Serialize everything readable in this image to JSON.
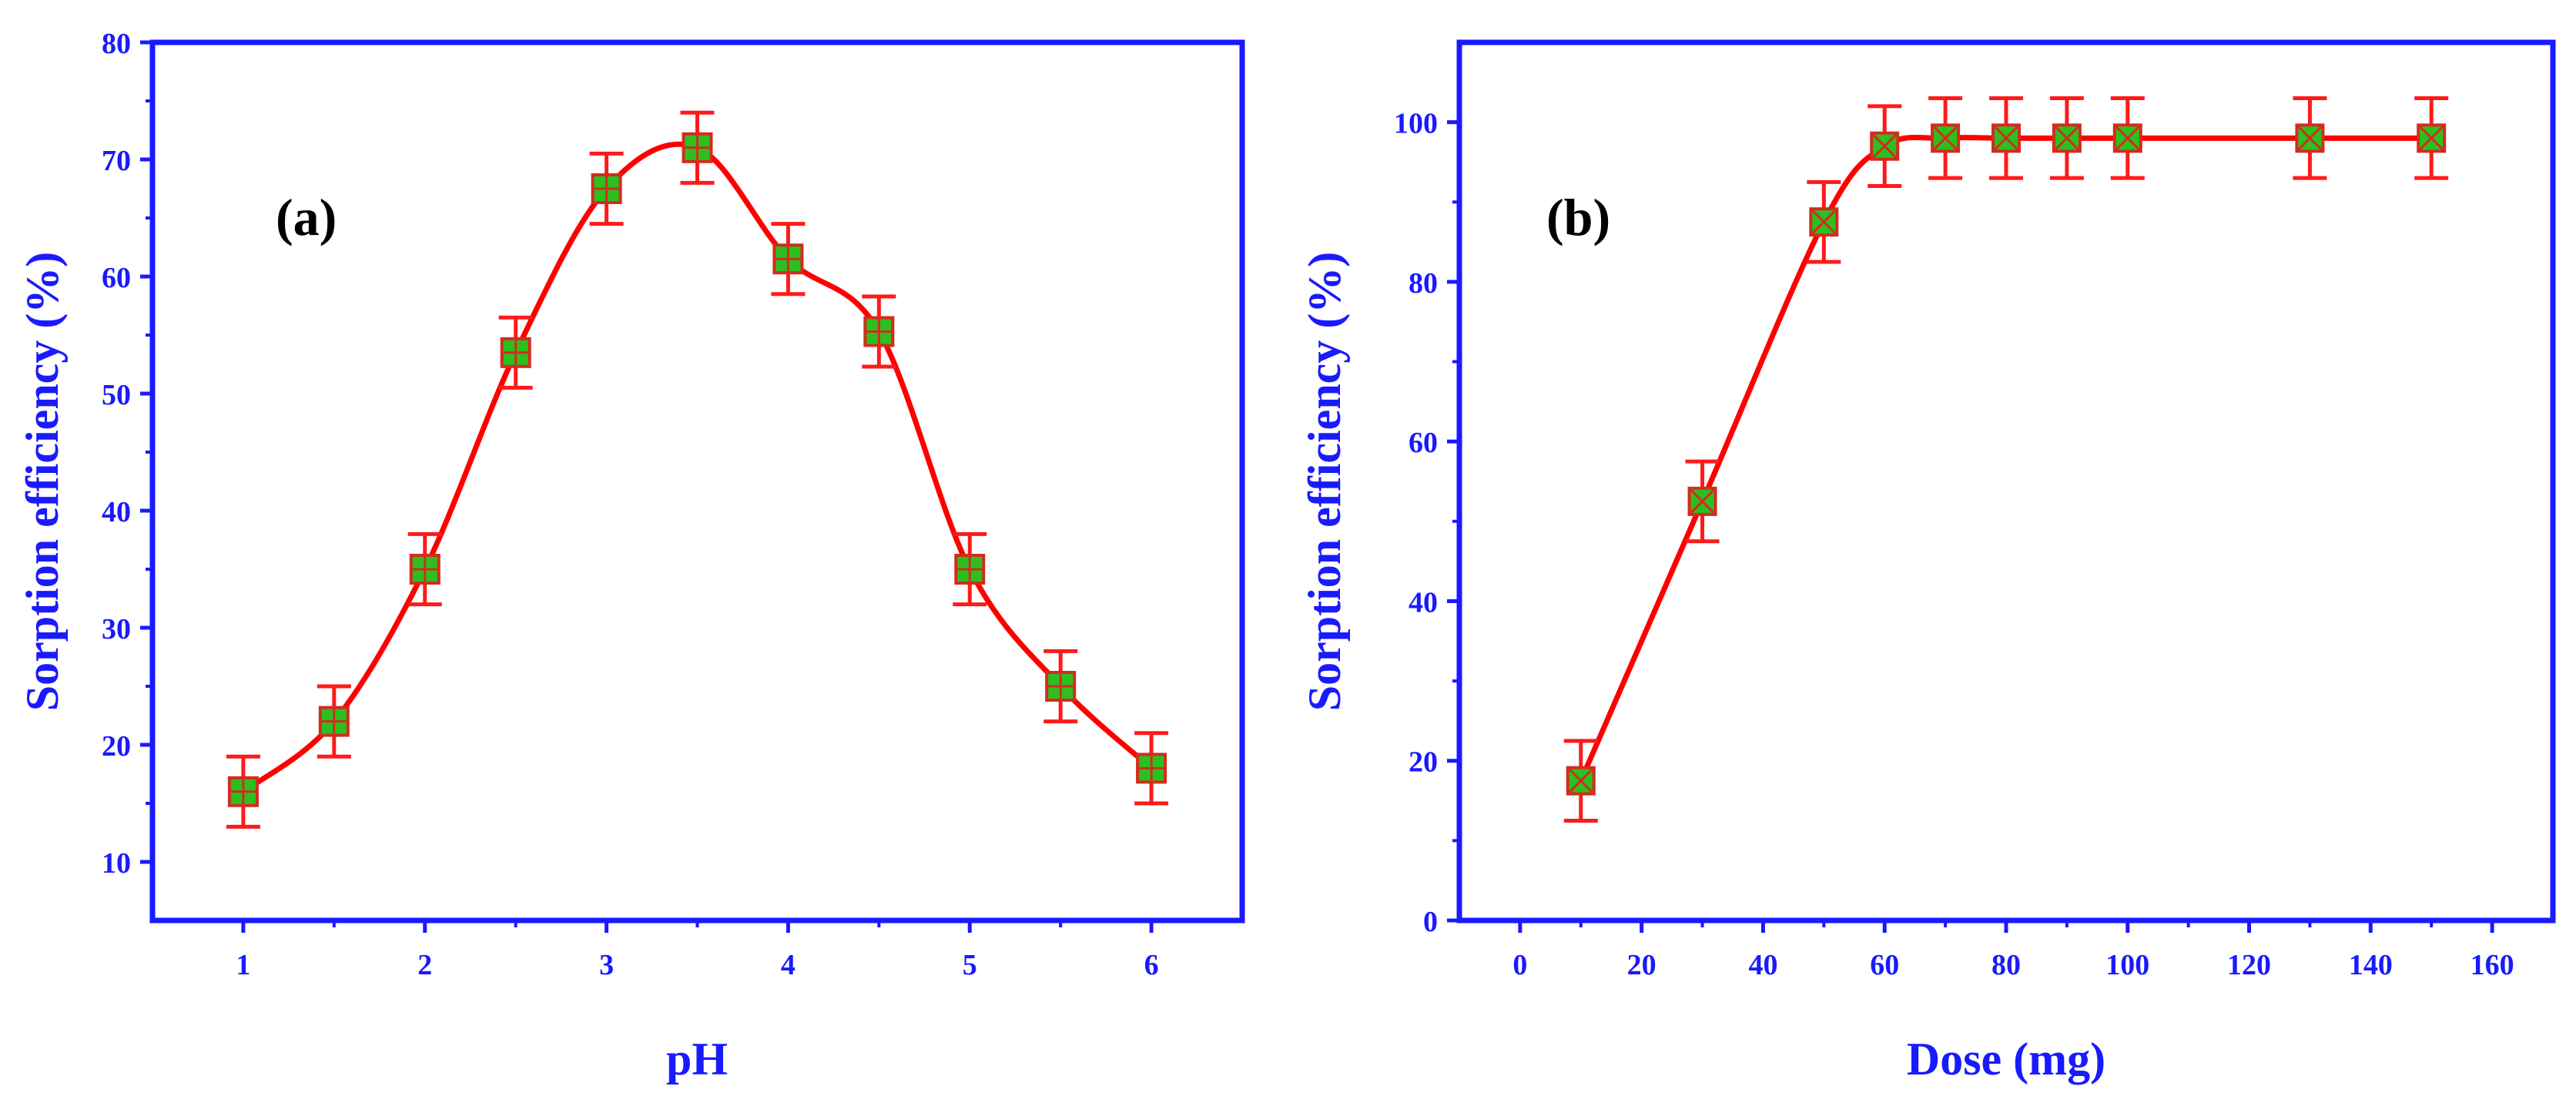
{
  "colors": {
    "axis": "#1a1aff",
    "text": "#1a1aff",
    "curve": "#ff0000",
    "marker_fill": "#2dbf1f",
    "marker_edge": "#d22c1e",
    "errorbar": "#ff1a1a"
  },
  "chart_data": [
    {
      "type": "scatter",
      "panel_label": "(a)",
      "xlabel": "pH",
      "ylabel": "Sorption efficiency (%)",
      "xlim": [
        0.5,
        6.5
      ],
      "ylim": [
        5,
        80
      ],
      "xticks": [
        1,
        2,
        3,
        4,
        5,
        6
      ],
      "yticks": [
        10,
        20,
        30,
        40,
        50,
        60,
        70,
        80
      ],
      "marker": "square-plus",
      "x": [
        1,
        1.5,
        2,
        2.5,
        3,
        3.5,
        4,
        4.5,
        5,
        5.5,
        6
      ],
      "y": [
        16,
        22,
        35,
        53.5,
        67.5,
        71,
        61.5,
        55.3,
        35,
        25,
        18
      ],
      "yerr": [
        3,
        3,
        3,
        3,
        3,
        3,
        3,
        3,
        3,
        3,
        3
      ],
      "fit": "smooth spline"
    },
    {
      "type": "scatter",
      "panel_label": "(b)",
      "xlabel": "Dose (mg)",
      "ylabel": "Sorption efficiency (%)",
      "xlim": [
        -10,
        170
      ],
      "ylim": [
        0,
        110
      ],
      "xticks": [
        0,
        20,
        40,
        60,
        80,
        100,
        120,
        140,
        160
      ],
      "yticks": [
        0,
        20,
        40,
        60,
        80,
        100
      ],
      "marker": "square-x",
      "x": [
        10,
        30,
        50,
        60,
        70,
        80,
        90,
        100,
        130,
        150
      ],
      "y": [
        17.5,
        52.5,
        87.5,
        97,
        98,
        98,
        98,
        98,
        98,
        98
      ],
      "yerr": [
        5,
        5,
        5,
        5,
        5,
        5,
        5,
        5,
        5,
        5
      ],
      "fit": "smooth spline"
    }
  ]
}
